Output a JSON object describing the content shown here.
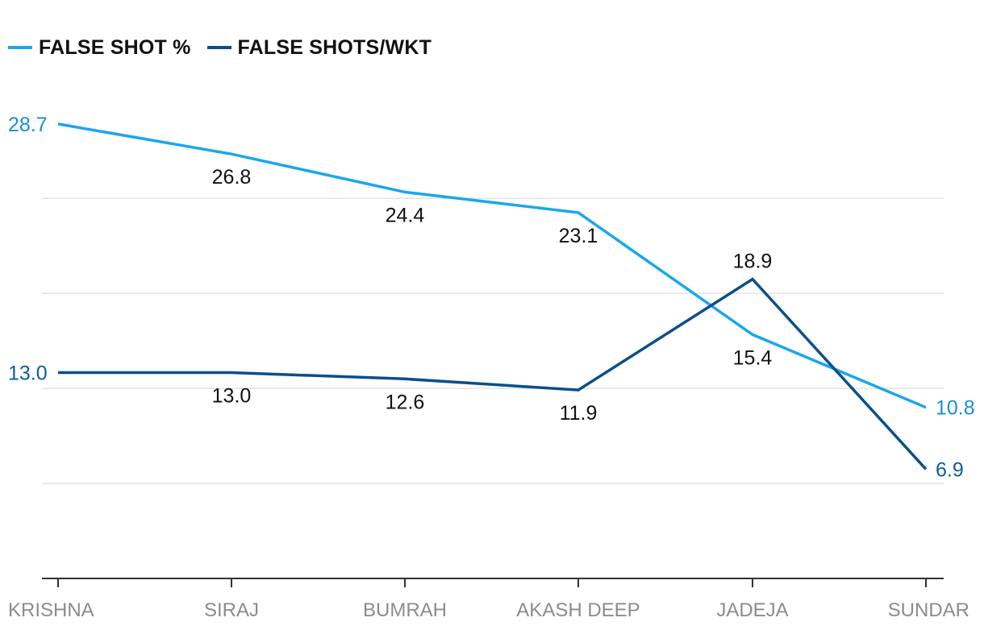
{
  "chart_data": {
    "type": "line",
    "categories": [
      "KRISHNA",
      "SIRAJ",
      "BUMRAH",
      "AKASH DEEP",
      "JADEJA",
      "SUNDAR"
    ],
    "series": [
      {
        "name": "FALSE SHOT %",
        "color": "#1aa7ec",
        "label_color": "#1a8fd1",
        "values": [
          28.7,
          26.8,
          24.4,
          23.1,
          15.4,
          10.8
        ],
        "labels": [
          "28.7",
          "26.8",
          "24.4",
          "23.1",
          "15.4",
          "10.8"
        ]
      },
      {
        "name": "FALSE SHOTS/WKT",
        "color": "#0b4f8a",
        "label_color": "#0d5ea3",
        "values": [
          13.0,
          13.0,
          12.6,
          11.9,
          18.9,
          6.9
        ],
        "labels": [
          "13.0",
          "13.0",
          "12.6",
          "11.9",
          "18.9",
          "6.9"
        ]
      }
    ],
    "ylim": [
      0,
      32
    ],
    "grid": true,
    "legend": "top-left",
    "gridline_color": "#e3e3e3",
    "axis_color": "#333333"
  }
}
